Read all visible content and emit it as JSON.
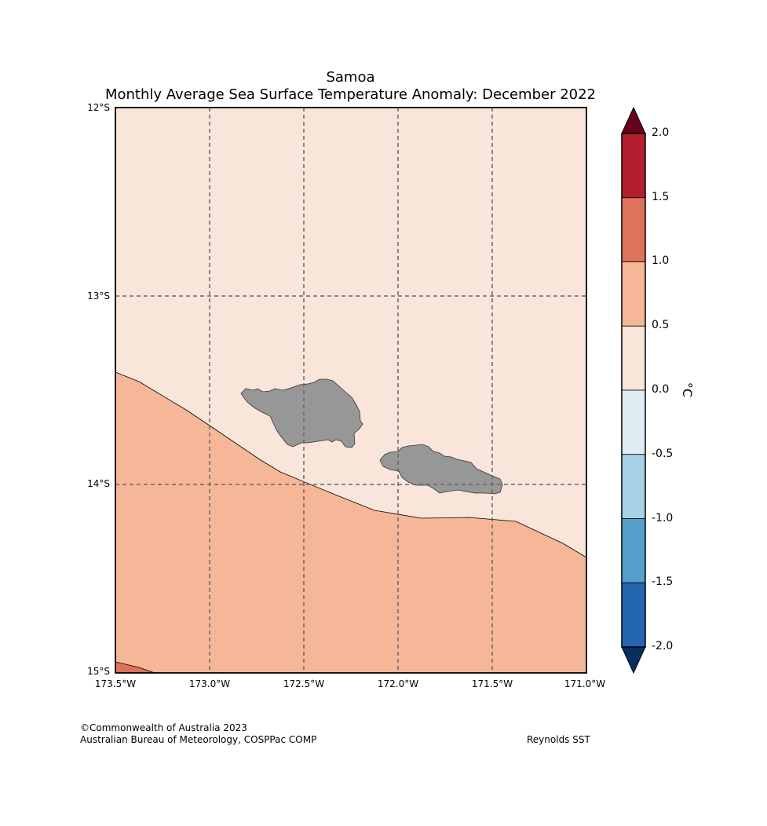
{
  "title": {
    "line1": "Samoa",
    "line2": "Monthly Average Sea Surface Temperature Anomaly: December 2022"
  },
  "map": {
    "latitude_labels": [
      "12°S",
      "13°S",
      "14°S",
      "15°S"
    ],
    "longitude_labels": [
      "173.5°W",
      "173.0°W",
      "172.5°W",
      "172.0°W",
      "171.5°W",
      "171.0°W"
    ],
    "extent": {
      "lon_min": -173.5,
      "lon_max": -171.0,
      "lat_min": -15.0,
      "lat_max": -12.0
    },
    "land_color": "#979797",
    "coast_color": "#333333",
    "gridline_color": "#666666",
    "regions": [
      {
        "name": "anomaly-0.0-to-0.5",
        "range": "0.0 to 0.5",
        "color": "#f9e5da"
      },
      {
        "name": "anomaly-0.5-to-1.0",
        "range": "0.5 to 1.0",
        "color": "#f6b799"
      },
      {
        "name": "anomaly-1.0-to-1.5",
        "range": "1.0 to 1.5",
        "color": "#de725a"
      }
    ]
  },
  "colorbar": {
    "unit": "°C",
    "ticks": [
      "2.0",
      "1.5",
      "1.0",
      "0.5",
      "0.0",
      "-0.5",
      "-1.0",
      "-1.5",
      "-2.0"
    ],
    "colors_top_to_bottom": [
      "#b31f2e",
      "#de725a",
      "#f6b799",
      "#f9e5da",
      "#e0ecf3",
      "#a8d1e6",
      "#559fcb",
      "#2467b0"
    ],
    "over_color": "#6a0020",
    "under_color": "#062f61"
  },
  "footer": {
    "copyright": "©Commonwealth of Australia 2023",
    "agency": "Australian Bureau of Meteorology, COSPPac COMP",
    "source": "Reynolds SST"
  }
}
